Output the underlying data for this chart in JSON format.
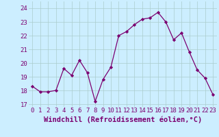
{
  "x": [
    0,
    1,
    2,
    3,
    4,
    5,
    6,
    7,
    8,
    9,
    10,
    11,
    12,
    13,
    14,
    15,
    16,
    17,
    18,
    19,
    20,
    21,
    22,
    23
  ],
  "y": [
    18.3,
    17.9,
    17.9,
    18.0,
    19.6,
    19.1,
    20.2,
    19.3,
    17.2,
    18.8,
    19.7,
    22.0,
    22.3,
    22.8,
    23.2,
    23.3,
    23.7,
    23.0,
    21.7,
    22.2,
    20.8,
    19.5,
    18.9,
    17.7
  ],
  "line_color": "#7B0070",
  "marker": "D",
  "marker_size": 2.2,
  "bg_color": "#cceeff",
  "grid_color": "#aacccc",
  "xlabel": "Windchill (Refroidissement éolien,°C)",
  "xlabel_color": "#7B0070",
  "xlabel_fontsize": 7.5,
  "tick_color": "#7B0070",
  "tick_fontsize": 6.5,
  "ylim": [
    16.8,
    24.5
  ],
  "yticks": [
    17,
    18,
    19,
    20,
    21,
    22,
    23,
    24
  ],
  "xlim": [
    -0.5,
    23.5
  ],
  "xticks": [
    0,
    1,
    2,
    3,
    4,
    5,
    6,
    7,
    8,
    9,
    10,
    11,
    12,
    13,
    14,
    15,
    16,
    17,
    18,
    19,
    20,
    21,
    22,
    23
  ]
}
